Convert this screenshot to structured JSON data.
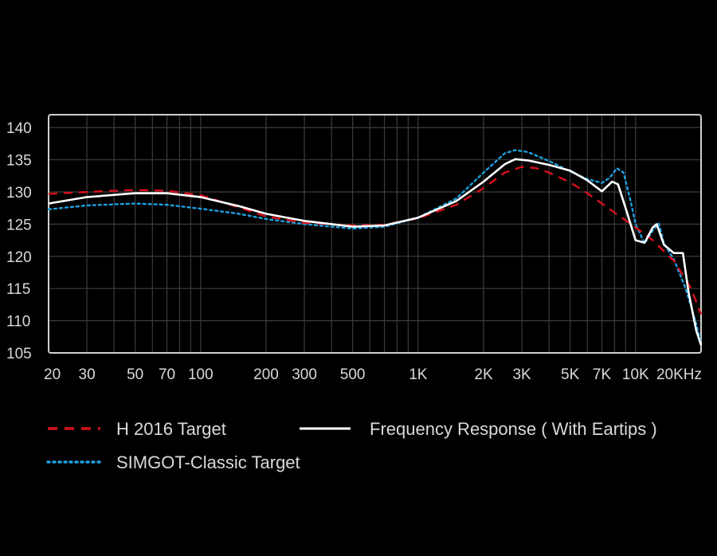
{
  "chart_data": {
    "type": "line",
    "title": "",
    "xlabel": "",
    "ylabel": "",
    "x_scale": "log",
    "xlim": [
      20,
      20000
    ],
    "ylim": [
      105,
      142
    ],
    "grid": true,
    "y_ticks": [
      {
        "value": 140,
        "label": "140"
      },
      {
        "value": 135,
        "label": "135"
      },
      {
        "value": 130,
        "label": "130"
      },
      {
        "value": 125,
        "label": "125"
      },
      {
        "value": 120,
        "label": "120"
      },
      {
        "value": 115,
        "label": "115"
      },
      {
        "value": 110,
        "label": "110"
      },
      {
        "value": 105,
        "label": "105"
      }
    ],
    "x_ticks": [
      {
        "value": 20,
        "label": "20"
      },
      {
        "value": 30,
        "label": "30"
      },
      {
        "value": 50,
        "label": "50"
      },
      {
        "value": 70,
        "label": "70"
      },
      {
        "value": 100,
        "label": "100"
      },
      {
        "value": 200,
        "label": "200"
      },
      {
        "value": 300,
        "label": "300"
      },
      {
        "value": 500,
        "label": "500"
      },
      {
        "value": 1000,
        "label": "1K"
      },
      {
        "value": 2000,
        "label": "2K"
      },
      {
        "value": 3000,
        "label": "3K"
      },
      {
        "value": 5000,
        "label": "5K"
      },
      {
        "value": 7000,
        "label": "7K"
      },
      {
        "value": 10000,
        "label": "10K"
      },
      {
        "value": 20000,
        "label": "20KHz"
      }
    ],
    "legend_placement": "bottom",
    "series": [
      {
        "name": "H 2016  Target",
        "color": "#d8101c",
        "style": "dashed",
        "points": [
          [
            20,
            129.7
          ],
          [
            30,
            130.0
          ],
          [
            50,
            130.3
          ],
          [
            70,
            130.2
          ],
          [
            100,
            129.5
          ],
          [
            150,
            127.6
          ],
          [
            200,
            126.2
          ],
          [
            300,
            125.2
          ],
          [
            500,
            124.8
          ],
          [
            700,
            124.9
          ],
          [
            1000,
            125.9
          ],
          [
            1500,
            128.0
          ],
          [
            2000,
            130.6
          ],
          [
            2500,
            133.0
          ],
          [
            3000,
            133.9
          ],
          [
            3500,
            133.7
          ],
          [
            4000,
            133.0
          ],
          [
            5000,
            131.5
          ],
          [
            6000,
            129.8
          ],
          [
            7000,
            128.2
          ],
          [
            8000,
            126.8
          ],
          [
            10000,
            124.5
          ],
          [
            12000,
            122.5
          ],
          [
            15000,
            119.3
          ],
          [
            18000,
            115.0
          ],
          [
            20000,
            111.0
          ]
        ]
      },
      {
        "name": "Frequency Response ( With Eartips )",
        "color": "#ffffff",
        "style": "solid",
        "points": [
          [
            20,
            128.2
          ],
          [
            30,
            129.2
          ],
          [
            50,
            129.8
          ],
          [
            70,
            129.8
          ],
          [
            100,
            129.2
          ],
          [
            150,
            127.8
          ],
          [
            200,
            126.6
          ],
          [
            300,
            125.5
          ],
          [
            500,
            124.6
          ],
          [
            700,
            124.8
          ],
          [
            1000,
            126.0
          ],
          [
            1500,
            128.6
          ],
          [
            2000,
            131.6
          ],
          [
            2500,
            134.3
          ],
          [
            2800,
            135.1
          ],
          [
            3200,
            134.9
          ],
          [
            4000,
            134.2
          ],
          [
            5000,
            133.3
          ],
          [
            6000,
            131.8
          ],
          [
            7000,
            130.1
          ],
          [
            7800,
            131.6
          ],
          [
            8300,
            131.2
          ],
          [
            9000,
            127.5
          ],
          [
            10000,
            122.5
          ],
          [
            11000,
            122.1
          ],
          [
            12000,
            124.5
          ],
          [
            12500,
            125.0
          ],
          [
            13500,
            121.8
          ],
          [
            15000,
            120.5
          ],
          [
            16500,
            120.5
          ],
          [
            17500,
            114.5
          ],
          [
            19000,
            108.5
          ],
          [
            20000,
            106.2
          ]
        ]
      },
      {
        "name": "SIMGOT-Classic Target",
        "color": "#1f9fe0",
        "style": "dotted",
        "points": [
          [
            20,
            127.3
          ],
          [
            30,
            127.9
          ],
          [
            50,
            128.2
          ],
          [
            70,
            128.0
          ],
          [
            100,
            127.4
          ],
          [
            150,
            126.6
          ],
          [
            200,
            125.8
          ],
          [
            300,
            125.0
          ],
          [
            500,
            124.3
          ],
          [
            700,
            124.6
          ],
          [
            1000,
            126.0
          ],
          [
            1500,
            129.0
          ],
          [
            2000,
            133.0
          ],
          [
            2500,
            136.0
          ],
          [
            2800,
            136.5
          ],
          [
            3200,
            136.2
          ],
          [
            4000,
            134.8
          ],
          [
            5000,
            133.2
          ],
          [
            6000,
            132.0
          ],
          [
            7000,
            131.4
          ],
          [
            7600,
            132.2
          ],
          [
            8200,
            133.7
          ],
          [
            8800,
            133.0
          ],
          [
            9500,
            128.5
          ],
          [
            10000,
            125.0
          ],
          [
            11000,
            122.0
          ],
          [
            12000,
            124.0
          ],
          [
            12800,
            125.1
          ],
          [
            13500,
            122.0
          ],
          [
            15000,
            119.5
          ],
          [
            17000,
            115.0
          ],
          [
            19000,
            109.5
          ],
          [
            20000,
            106.5
          ]
        ]
      }
    ]
  }
}
